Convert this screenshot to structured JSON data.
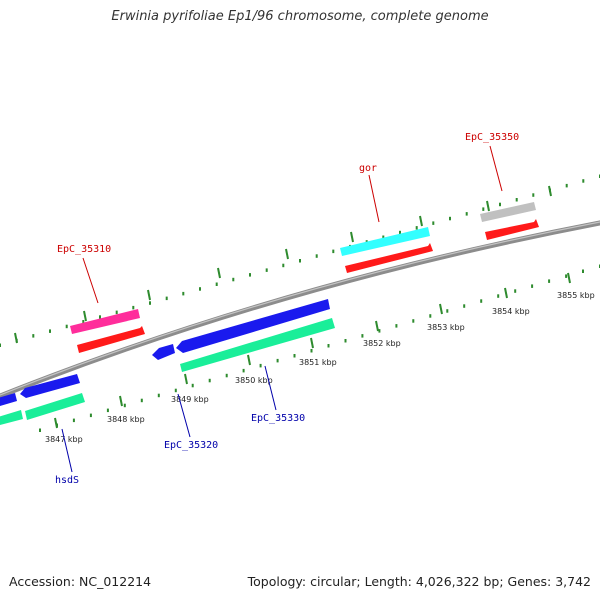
{
  "title": "Erwinia pyrifoliae Ep1/96 chromosome, complete genome",
  "footer": {
    "accession": "Accession: NC_012214",
    "topology": "Topology: circular; Length: 4,026,322 bp; Genes: 3,742"
  },
  "colors": {
    "backbone": "#8a8a8a",
    "tick": "#2e8b2e",
    "forward_label": "#cc0000",
    "reverse_label": "#0000aa"
  },
  "chart_data": {
    "type": "genome-map",
    "unit": "kbp",
    "ticks": [
      {
        "pos": 3847,
        "label": "3847 kbp"
      },
      {
        "pos": 3848,
        "label": "3848 kbp"
      },
      {
        "pos": 3849,
        "label": "3849 kbp"
      },
      {
        "pos": 3850,
        "label": "3850 kbp"
      },
      {
        "pos": 3851,
        "label": "3851 kbp"
      },
      {
        "pos": 3852,
        "label": "3852 kbp"
      },
      {
        "pos": 3853,
        "label": "3853 kbp"
      },
      {
        "pos": 3854,
        "label": "3854 kbp"
      },
      {
        "pos": 3855,
        "label": "3855 kbp"
      }
    ],
    "genes": [
      {
        "name": "EpC_35310",
        "strand": "+",
        "color": "#ff2d9b"
      },
      {
        "name": "gor",
        "strand": "+",
        "color": "#33ffff"
      },
      {
        "name": "EpC_35350",
        "strand": "+",
        "color": "#c0c0c0"
      },
      {
        "name": "hsdS",
        "strand": "-",
        "color": "#1a1aee"
      },
      {
        "name": "EpC_35320",
        "strand": "-",
        "color": "#1a1aee"
      },
      {
        "name": "EpC_35330",
        "strand": "-",
        "color": "#1a1aee"
      }
    ],
    "unlabeled_features": [
      {
        "strand": "+",
        "kind": "cds",
        "color": "#ff1a1a"
      },
      {
        "strand": "-",
        "kind": "cds",
        "color": "#1aee99"
      }
    ]
  }
}
